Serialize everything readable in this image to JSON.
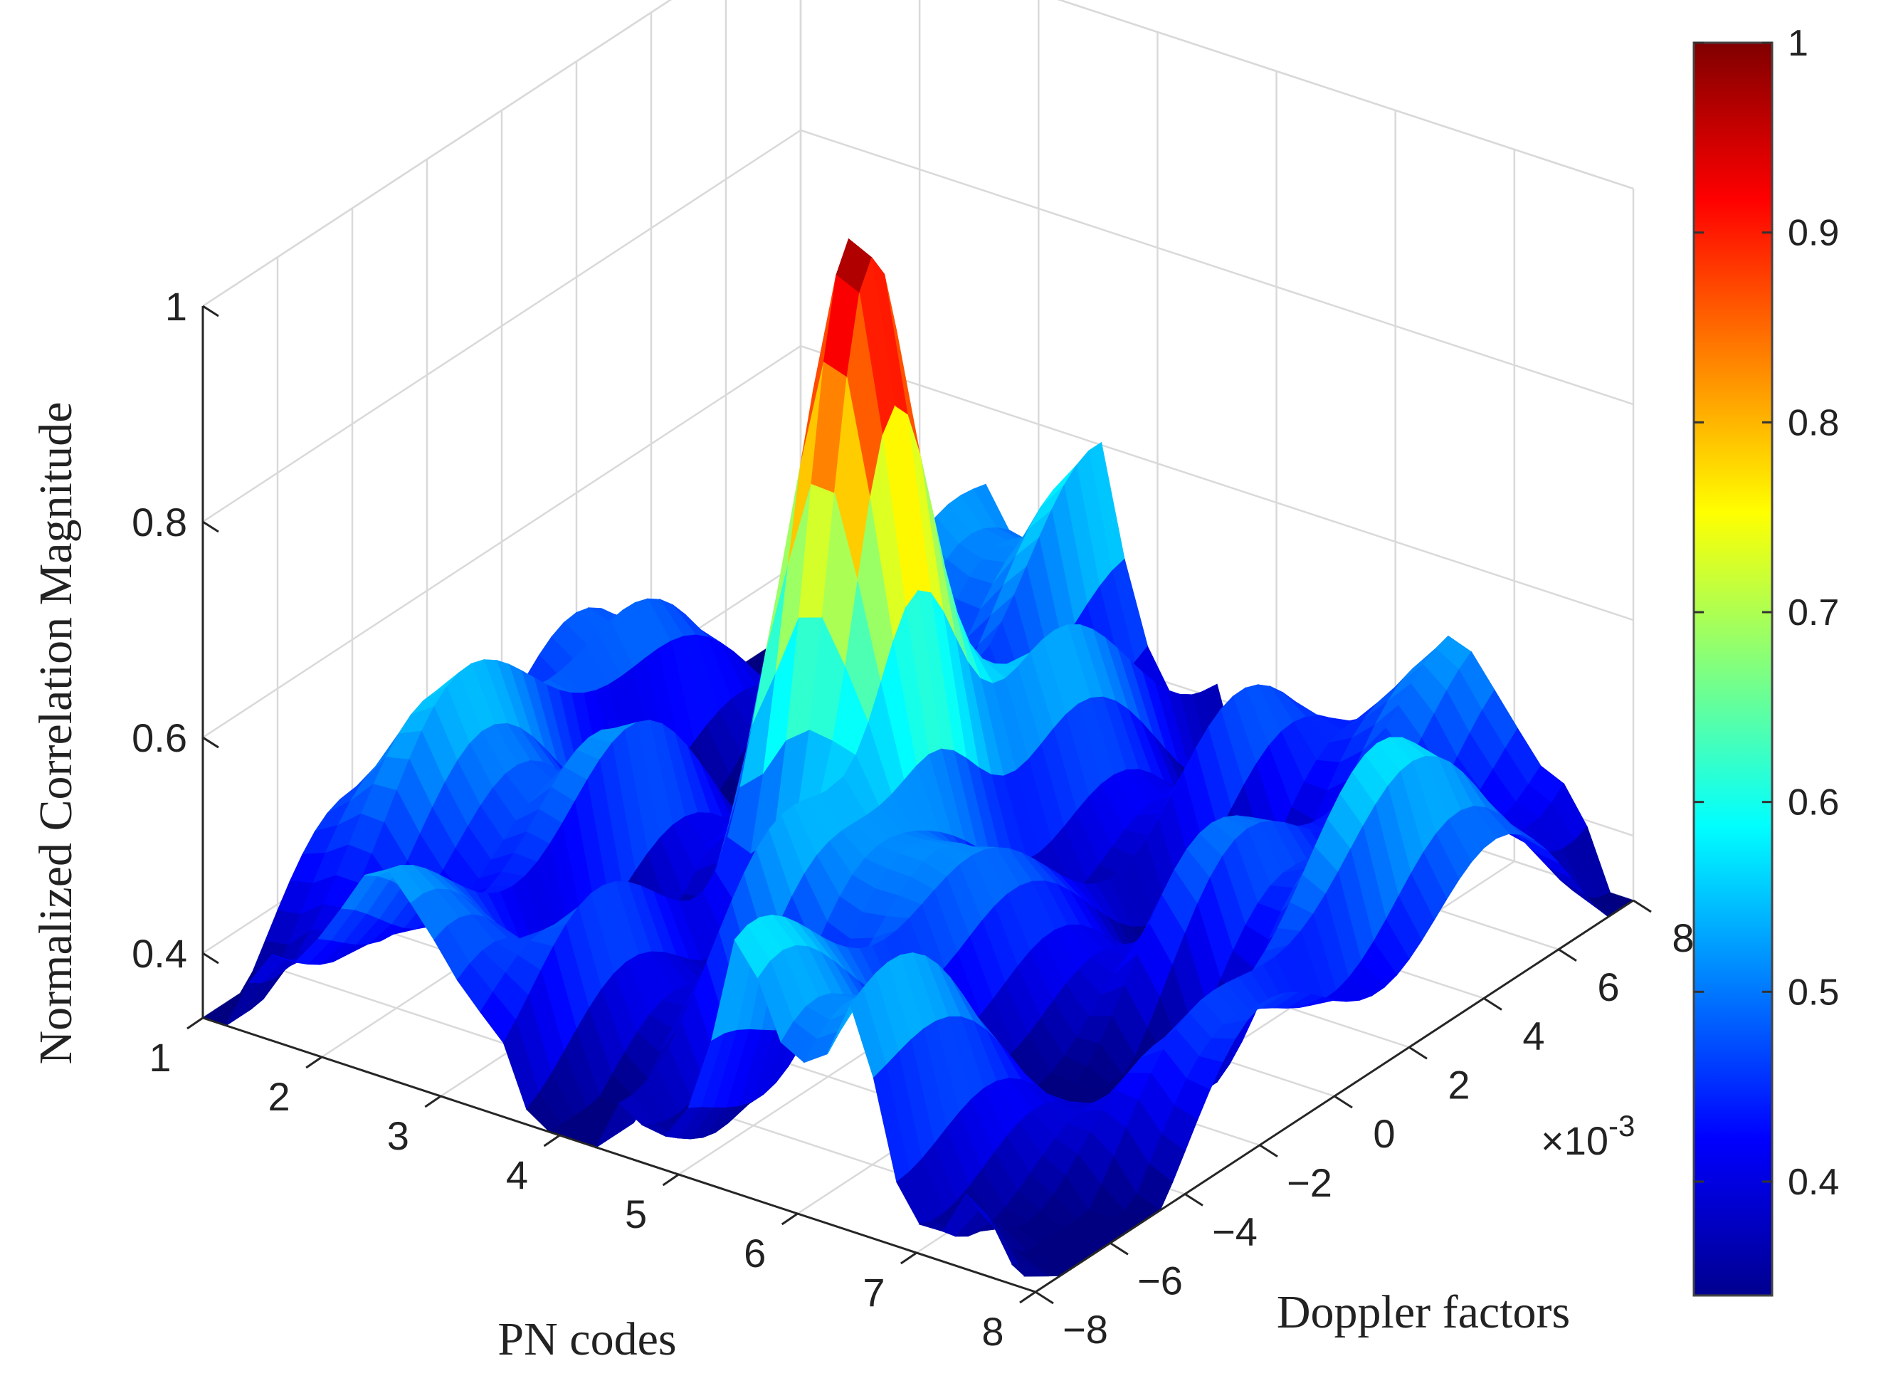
{
  "chart_data": {
    "type": "surface3d",
    "xlabel": "PN codes",
    "ylabel": "Doppler factors",
    "zlabel": "Normalized Correlation Magnitude",
    "x_ticks": [
      "1",
      "2",
      "3",
      "4",
      "5",
      "6",
      "7",
      "8"
    ],
    "y_ticks": [
      "-8",
      "-6",
      "-4",
      "-2",
      "0",
      "2",
      "4",
      "6",
      "8"
    ],
    "z_ticks": [
      "0.4",
      "0.6",
      "0.8",
      "1"
    ],
    "y_exponent_base": "×10",
    "y_exponent_power": "-3",
    "xlim": [
      1,
      8
    ],
    "ylim": [
      -8,
      8
    ],
    "ylim_scale": 0.001,
    "zlim": [
      0.34,
      1.0
    ],
    "colorbar": {
      "colormap": "jet",
      "range": [
        0.34,
        1.0
      ],
      "ticks": [
        "0.4",
        "0.5",
        "0.6",
        "0.7",
        "0.8",
        "0.9",
        "1"
      ]
    },
    "peak": {
      "pn_code": 4,
      "doppler": 0,
      "value": 1.0
    },
    "profile": {
      "doppler": [
        -8,
        -6,
        -4,
        -2,
        0,
        2,
        4,
        6,
        8
      ],
      "peak_code_values": [
        0.52,
        0.53,
        0.55,
        0.67,
        1.0,
        0.67,
        0.55,
        0.48,
        0.46
      ],
      "other_codes_max": [
        0.56,
        0.58,
        0.6,
        0.64,
        0.66,
        0.6,
        0.56,
        0.52,
        0.5
      ]
    }
  }
}
